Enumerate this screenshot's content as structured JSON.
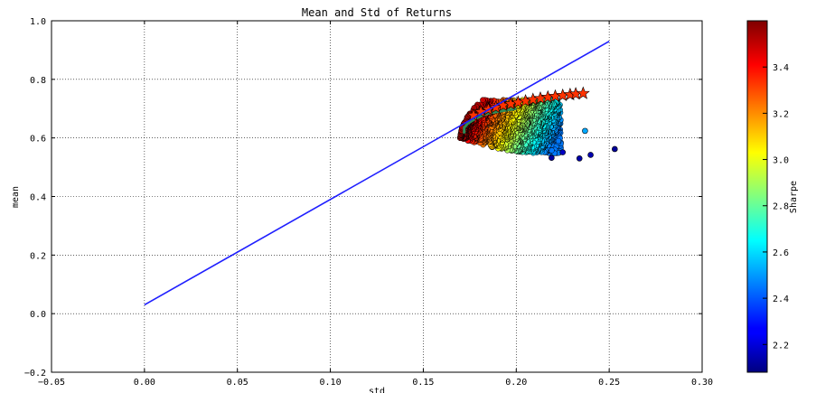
{
  "chart_data": {
    "type": "scatter",
    "title": "Mean and Std of Returns",
    "xlabel": "std",
    "ylabel": "mean",
    "xlim": [
      -0.05,
      0.3
    ],
    "ylim": [
      -0.2,
      1.0
    ],
    "grid": true,
    "x_ticks": [
      -0.05,
      0.0,
      0.05,
      0.1,
      0.15,
      0.2,
      0.25,
      0.3
    ],
    "x_tick_labels": [
      "−0.05",
      "0.00",
      "0.05",
      "0.10",
      "0.15",
      "0.20",
      "0.25",
      "0.30"
    ],
    "y_ticks": [
      -0.2,
      0.0,
      0.2,
      0.4,
      0.6,
      0.8,
      1.0
    ],
    "y_tick_labels": [
      "−0.2",
      "0.0",
      "0.2",
      "0.4",
      "0.6",
      "0.8",
      "1.0"
    ],
    "colorbar": {
      "label": "Sharpe",
      "min": 2.08,
      "max": 3.6,
      "ticks": [
        2.2,
        2.4,
        2.6,
        2.8,
        3.0,
        3.2,
        3.4
      ],
      "tick_labels": [
        "2.2",
        "2.4",
        "2.6",
        "2.8",
        "3.0",
        "3.2",
        "3.4"
      ],
      "colormap": "jet"
    },
    "line_series": {
      "color": "#1f1fff",
      "x": [
        0.0,
        0.25
      ],
      "y": [
        0.03,
        0.93
      ]
    },
    "frontier_stars": {
      "x": [
        0.177,
        0.181,
        0.185,
        0.189,
        0.193,
        0.197,
        0.201,
        0.205,
        0.209,
        0.213,
        0.217,
        0.221,
        0.225,
        0.229,
        0.232,
        0.236
      ],
      "y": [
        0.677,
        0.689,
        0.697,
        0.704,
        0.711,
        0.716,
        0.721,
        0.726,
        0.731,
        0.735,
        0.739,
        0.742,
        0.745,
        0.748,
        0.75,
        0.752
      ],
      "color": "#ff3300"
    },
    "frontier_curve": {
      "color": "#2e8b57",
      "x": [
        0.172,
        0.172,
        0.174,
        0.177,
        0.181,
        0.185,
        0.19,
        0.195,
        0.2
      ],
      "y": [
        0.615,
        0.635,
        0.65,
        0.662,
        0.675,
        0.684,
        0.69,
        0.695,
        0.7
      ]
    },
    "outliers": {
      "x": [
        0.237,
        0.253,
        0.24,
        0.234,
        0.225,
        0.219
      ],
      "y": [
        0.624,
        0.562,
        0.542,
        0.53,
        0.551,
        0.532
      ],
      "sharpe": [
        2.52,
        2.12,
        2.15,
        2.14,
        2.18,
        2.13
      ]
    },
    "cloud": {
      "count": 1600,
      "x_range": [
        0.168,
        0.224
      ],
      "y_range": [
        0.535,
        0.74
      ],
      "sharpe_range": [
        2.45,
        3.55
      ]
    }
  }
}
